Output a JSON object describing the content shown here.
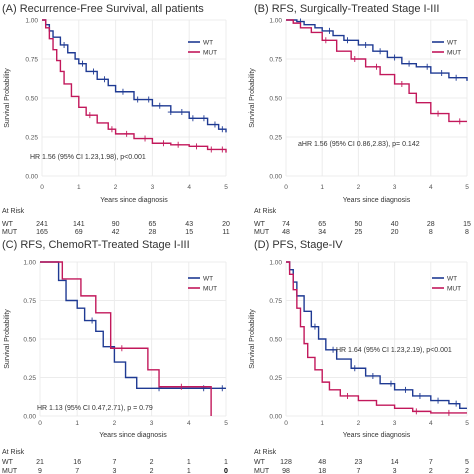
{
  "figure_name": "kaplan-meier-multipanel",
  "colors": {
    "wt": "#1f3a93",
    "mut": "#c2185b",
    "grid": "#ececec",
    "text": "#333333",
    "muted": "#555555",
    "risk_zero": "#000000"
  },
  "chart_data": [
    {
      "type": "line",
      "panel_key": "a",
      "title": "(A) Recurrence-Free Survival, all patients",
      "xlabel": "Years since diagnosis",
      "ylabel": "Survival Probability",
      "xlim": [
        0,
        5
      ],
      "ylim": [
        0,
        1
      ],
      "x_ticks": [
        0,
        1,
        2,
        3,
        4,
        5
      ],
      "y_ticks": [
        "0.00",
        "0.25",
        "0.50",
        "0.75",
        "1.00"
      ],
      "legend": [
        "WT",
        "MUT"
      ],
      "legend_position": "top-right",
      "annotation": "HR 1.56 (95% CI 1.23,1.98), p<0.001",
      "series": [
        {
          "name": "WT",
          "x": [
            0,
            0.1,
            0.2,
            0.3,
            0.5,
            0.7,
            0.9,
            1.0,
            1.2,
            1.5,
            1.8,
            2.0,
            2.5,
            3.0,
            3.5,
            4.0,
            4.5,
            4.8,
            5.0
          ],
          "y": [
            1.0,
            0.97,
            0.93,
            0.89,
            0.84,
            0.79,
            0.75,
            0.72,
            0.67,
            0.62,
            0.58,
            0.54,
            0.49,
            0.45,
            0.41,
            0.37,
            0.33,
            0.3,
            0.28
          ],
          "censor_x": [
            0.6,
            1.1,
            1.4,
            1.7,
            2.2,
            2.6,
            2.9,
            3.2,
            3.5,
            3.8,
            4.1,
            4.4,
            4.7,
            4.9
          ]
        },
        {
          "name": "MUT",
          "x": [
            0,
            0.1,
            0.2,
            0.3,
            0.4,
            0.5,
            0.6,
            0.8,
            1.0,
            1.2,
            1.5,
            1.8,
            2.0,
            2.5,
            3.0,
            3.5,
            4.0,
            4.5,
            5.0
          ],
          "y": [
            1.0,
            0.95,
            0.88,
            0.81,
            0.74,
            0.67,
            0.59,
            0.51,
            0.44,
            0.39,
            0.34,
            0.3,
            0.27,
            0.24,
            0.21,
            0.2,
            0.19,
            0.17,
            0.15
          ],
          "censor_x": [
            1.3,
            1.9,
            2.3,
            2.8,
            3.3,
            3.7,
            4.2,
            4.6,
            4.9
          ]
        }
      ],
      "risk_table": {
        "title": "At Risk",
        "rows": [
          {
            "label": "WT",
            "values": [
              "241",
              "141",
              "90",
              "65",
              "43",
              "20"
            ]
          },
          {
            "label": "MUT",
            "values": [
              "165",
              "69",
              "42",
              "28",
              "15",
              "11"
            ]
          }
        ]
      }
    },
    {
      "type": "line",
      "panel_key": "b",
      "title": "(B)  RFS, Surgically-Treated Stage I-III",
      "xlabel": "Years since diagnosis",
      "ylabel": "Survival Probability",
      "xlim": [
        0,
        5
      ],
      "ylim": [
        0,
        1
      ],
      "x_ticks": [
        0,
        1,
        2,
        3,
        4,
        5
      ],
      "y_ticks": [
        "0.00",
        "0.25",
        "0.50",
        "0.75",
        "1.00"
      ],
      "legend": [
        "WT",
        "MUT"
      ],
      "legend_position": "top-right",
      "annotation": "aHR 1.56 (95% CI 0.86,2.83), p= 0.142",
      "series": [
        {
          "name": "WT",
          "x": [
            0,
            0.3,
            0.5,
            0.8,
            1.0,
            1.3,
            1.6,
            2.0,
            2.4,
            2.8,
            3.2,
            3.6,
            4.0,
            4.5,
            5.0
          ],
          "y": [
            1.0,
            0.99,
            0.97,
            0.95,
            0.93,
            0.9,
            0.87,
            0.84,
            0.8,
            0.76,
            0.72,
            0.7,
            0.66,
            0.63,
            0.61
          ],
          "censor_x": [
            0.4,
            1.2,
            1.7,
            2.2,
            2.6,
            3.0,
            3.4,
            3.9,
            4.3,
            4.7
          ]
        },
        {
          "name": "MUT",
          "x": [
            0,
            0.2,
            0.4,
            0.7,
            1.0,
            1.4,
            1.8,
            2.2,
            2.6,
            3.0,
            3.4,
            3.6,
            4.0,
            4.5,
            5.0
          ],
          "y": [
            1.0,
            0.98,
            0.95,
            0.92,
            0.87,
            0.8,
            0.75,
            0.7,
            0.65,
            0.59,
            0.53,
            0.47,
            0.4,
            0.35,
            0.35
          ],
          "censor_x": [
            1.1,
            1.9,
            2.5,
            3.2,
            4.2,
            4.8
          ]
        }
      ],
      "risk_table": {
        "title": "At Risk",
        "rows": [
          {
            "label": "WT",
            "values": [
              "74",
              "65",
              "50",
              "40",
              "28",
              "15"
            ]
          },
          {
            "label": "MUT",
            "values": [
              "48",
              "34",
              "25",
              "20",
              "8",
              "8"
            ]
          }
        ]
      }
    },
    {
      "type": "line",
      "panel_key": "c",
      "title": "(C)  RFS, ChemoRT-Treated Stage I-III",
      "xlabel": "Years since diagnosis",
      "ylabel": "Survival Probability",
      "xlim": [
        0,
        5
      ],
      "ylim": [
        0,
        1
      ],
      "x_ticks": [
        0,
        1,
        2,
        3,
        4,
        5
      ],
      "y_ticks": [
        "0.00",
        "0.25",
        "0.50",
        "0.75",
        "1.00"
      ],
      "legend": [
        "WT",
        "MUT"
      ],
      "legend_position": "top-right",
      "annotation": "HR 1.13 (95% CI 0.47,2.71), p = 0.79",
      "series": [
        {
          "name": "WT",
          "x": [
            0,
            0.5,
            0.7,
            1.0,
            1.2,
            1.5,
            1.7,
            2.0,
            2.3,
            2.6,
            3.0,
            5.0
          ],
          "y": [
            1.0,
            0.88,
            0.75,
            0.7,
            0.62,
            0.55,
            0.45,
            0.35,
            0.25,
            0.18,
            0.18,
            0.18
          ],
          "censor_x": [
            1.4,
            3.2,
            4.4,
            4.9
          ]
        },
        {
          "name": "MUT",
          "x": [
            0,
            0.6,
            1.1,
            1.5,
            1.9,
            2.9,
            3.2,
            3.6,
            4.0,
            4.4,
            4.6
          ],
          "y": [
            1.0,
            0.89,
            0.78,
            0.67,
            0.44,
            0.3,
            0.19,
            0.19,
            0.19,
            0.19,
            0.0
          ],
          "censor_x": [
            2.2,
            3.8
          ]
        }
      ],
      "risk_table": {
        "title": "At Risk",
        "rows": [
          {
            "label": "WT",
            "values": [
              "21",
              "16",
              "7",
              "2",
              "1",
              "1"
            ]
          },
          {
            "label": "MUT",
            "values": [
              "9",
              "7",
              "3",
              "2",
              "1",
              "0"
            ]
          }
        ]
      }
    },
    {
      "type": "line",
      "panel_key": "d",
      "title": "(D)  PFS, Stage-IV",
      "xlabel": "Years since diagnosis",
      "ylabel": "Survival Probability",
      "xlim": [
        0,
        5
      ],
      "ylim": [
        0,
        1
      ],
      "x_ticks": [
        0,
        1,
        2,
        3,
        4,
        5
      ],
      "y_ticks": [
        "0.00",
        "0.25",
        "0.50",
        "0.75",
        "1.00"
      ],
      "legend": [
        "WT",
        "MUT"
      ],
      "legend_position": "top-right",
      "annotation": "HR 1.64 (95% CI 1.23,2.19), p<0.001",
      "series": [
        {
          "name": "WT",
          "x": [
            0,
            0.1,
            0.2,
            0.3,
            0.5,
            0.7,
            0.9,
            1.1,
            1.4,
            1.8,
            2.2,
            2.6,
            3.0,
            3.5,
            4.0,
            4.5,
            4.8,
            5.0
          ],
          "y": [
            1.0,
            0.95,
            0.87,
            0.78,
            0.68,
            0.58,
            0.5,
            0.43,
            0.37,
            0.31,
            0.26,
            0.21,
            0.17,
            0.13,
            0.1,
            0.08,
            0.05,
            0.05
          ],
          "censor_x": [
            0.8,
            1.3,
            1.9,
            2.4,
            2.9,
            3.3,
            3.7,
            4.2,
            4.7
          ]
        },
        {
          "name": "MUT",
          "x": [
            0,
            0.1,
            0.2,
            0.3,
            0.4,
            0.5,
            0.6,
            0.8,
            1.0,
            1.2,
            1.5,
            2.0,
            2.5,
            3.0,
            3.5,
            4.0,
            5.0
          ],
          "y": [
            1.0,
            0.92,
            0.82,
            0.7,
            0.58,
            0.47,
            0.38,
            0.3,
            0.22,
            0.17,
            0.13,
            0.1,
            0.07,
            0.05,
            0.03,
            0.02,
            0.02
          ],
          "censor_x": [
            1.7,
            3.6,
            4.5
          ]
        }
      ],
      "risk_table": {
        "title": "At Risk",
        "rows": [
          {
            "label": "WT",
            "values": [
              "128",
              "48",
              "23",
              "14",
              "7",
              "5"
            ]
          },
          {
            "label": "MUT",
            "values": [
              "98",
              "18",
              "7",
              "3",
              "2",
              "2"
            ]
          }
        ]
      }
    }
  ]
}
